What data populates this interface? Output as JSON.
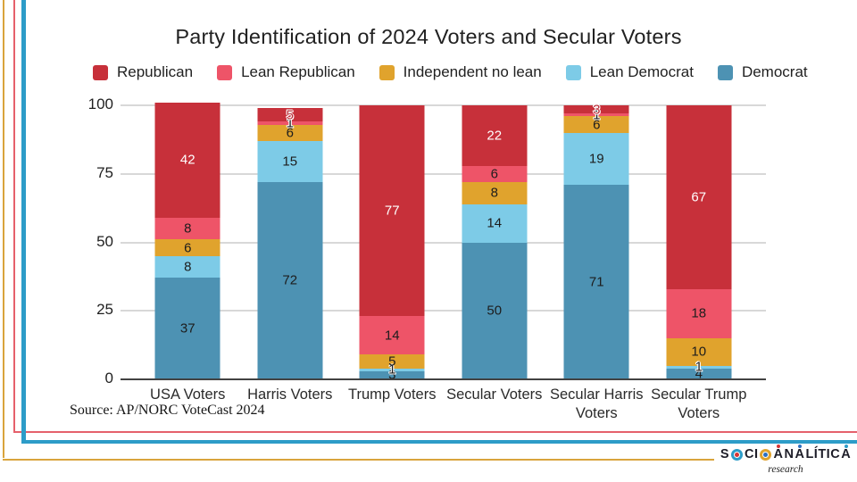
{
  "chart_data": {
    "type": "bar",
    "subtype": "stacked-vertical",
    "title": "Party Identification of 2024 Voters and Secular Voters",
    "categories": [
      "USA Voters",
      "Harris Voters",
      "Trump Voters",
      "Secular Voters",
      "Secular Harris Voters",
      "Secular Trump Voters"
    ],
    "series": [
      {
        "name": "Republican",
        "key": "republican",
        "color": "#c7303a",
        "values": [
          42,
          5,
          77,
          22,
          3,
          67
        ]
      },
      {
        "name": "Lean Republican",
        "key": "lean_republican",
        "color": "#ee5468",
        "values": [
          8,
          1,
          14,
          6,
          1,
          18
        ]
      },
      {
        "name": "Independent no lean",
        "key": "independent",
        "color": "#e0a32d",
        "values": [
          6,
          6,
          5,
          8,
          6,
          10
        ]
      },
      {
        "name": "Lean Democrat",
        "key": "lean_democrat",
        "color": "#7dcbe7",
        "values": [
          8,
          15,
          1,
          14,
          19,
          1
        ]
      },
      {
        "name": "Democrat",
        "key": "democrat",
        "color": "#4d92b3",
        "values": [
          37,
          72,
          3,
          50,
          71,
          4
        ]
      }
    ],
    "ylim": [
      0,
      100
    ],
    "yticks": [
      0,
      25,
      50,
      75,
      100
    ],
    "legend_position": "top",
    "grid": true,
    "gridline_color": "#d8d8d8",
    "baseline_color": "#424242"
  },
  "source": {
    "label": "Source: AP/NORC VoteCast 2024"
  },
  "frame": {
    "gold": "#d9a43c",
    "red": "#e5606b",
    "blue": "#2d9cc8"
  },
  "logo": {
    "name": "SocioAnalitica Research",
    "subtitle": "research",
    "parts": [
      {
        "t": "S"
      },
      {
        "icon": "target-o"
      },
      {
        "t": "CI"
      },
      {
        "icon": "swirl-o"
      },
      {
        "t": "A",
        "dot": "#d63434"
      },
      {
        "t": "N"
      },
      {
        "t": "A",
        "dot": "#2d6fc0"
      },
      {
        "t": "LÍTIC"
      },
      {
        "t": "A",
        "dot": "#2d9cc8"
      }
    ]
  }
}
